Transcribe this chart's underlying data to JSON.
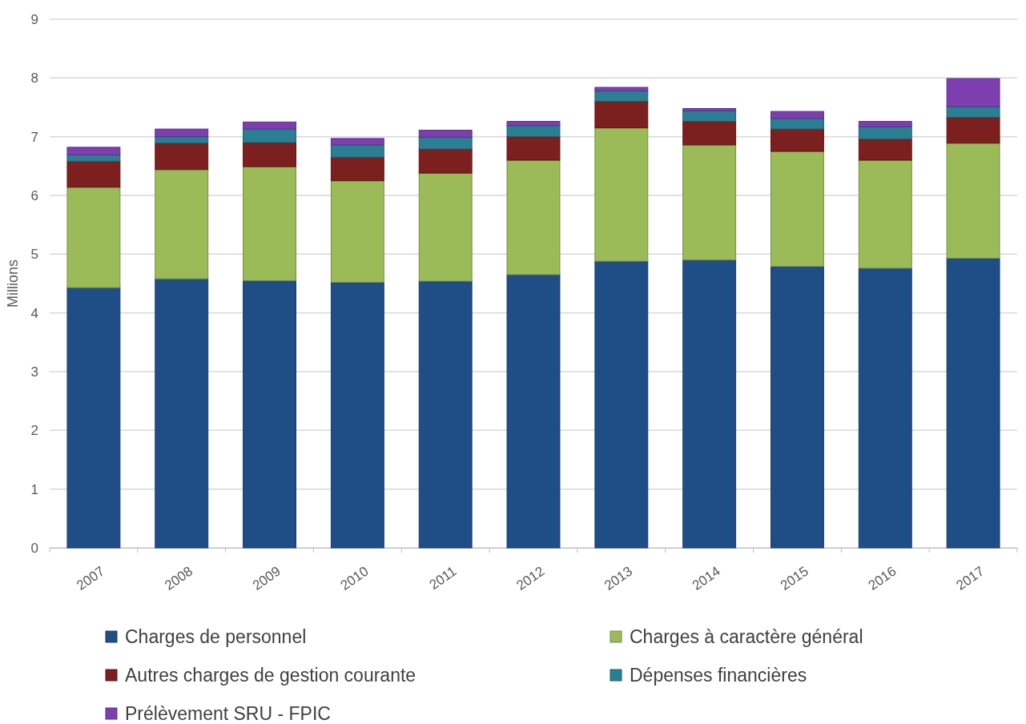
{
  "chart_data": {
    "type": "bar",
    "stacked": true,
    "ylabel": "Millions",
    "categories": [
      "2007",
      "2008",
      "2009",
      "2010",
      "2011",
      "2012",
      "2013",
      "2014",
      "2015",
      "2016",
      "2017"
    ],
    "series": [
      {
        "name": "Charges de personnel",
        "color": "#1f4e86",
        "values": [
          4.43,
          4.58,
          4.55,
          4.52,
          4.54,
          4.65,
          4.88,
          4.9,
          4.79,
          4.76,
          4.93
        ]
      },
      {
        "name": "Charges à caractère général",
        "color": "#9bbb59",
        "values": [
          1.71,
          1.86,
          1.94,
          1.73,
          1.84,
          1.95,
          2.27,
          1.96,
          1.96,
          1.84,
          1.96
        ]
      },
      {
        "name": "Autres charges de gestion courante",
        "color": "#7b1f1f",
        "values": [
          0.44,
          0.45,
          0.41,
          0.4,
          0.41,
          0.4,
          0.45,
          0.4,
          0.38,
          0.36,
          0.44
        ]
      },
      {
        "name": "Dépenses financières",
        "color": "#2a7f92",
        "values": [
          0.11,
          0.11,
          0.23,
          0.21,
          0.2,
          0.19,
          0.18,
          0.18,
          0.18,
          0.21,
          0.18
        ]
      },
      {
        "name": "Prélèvement SRU - FPIC",
        "color": "#7d3fb0",
        "values": [
          0.13,
          0.13,
          0.12,
          0.11,
          0.12,
          0.07,
          0.06,
          0.04,
          0.12,
          0.09,
          0.48
        ]
      }
    ],
    "ylim": [
      0,
      9
    ],
    "yticks": [
      0,
      1,
      2,
      3,
      4,
      5,
      6,
      7,
      8,
      9
    ],
    "grid": "y",
    "legend": "bottom"
  }
}
